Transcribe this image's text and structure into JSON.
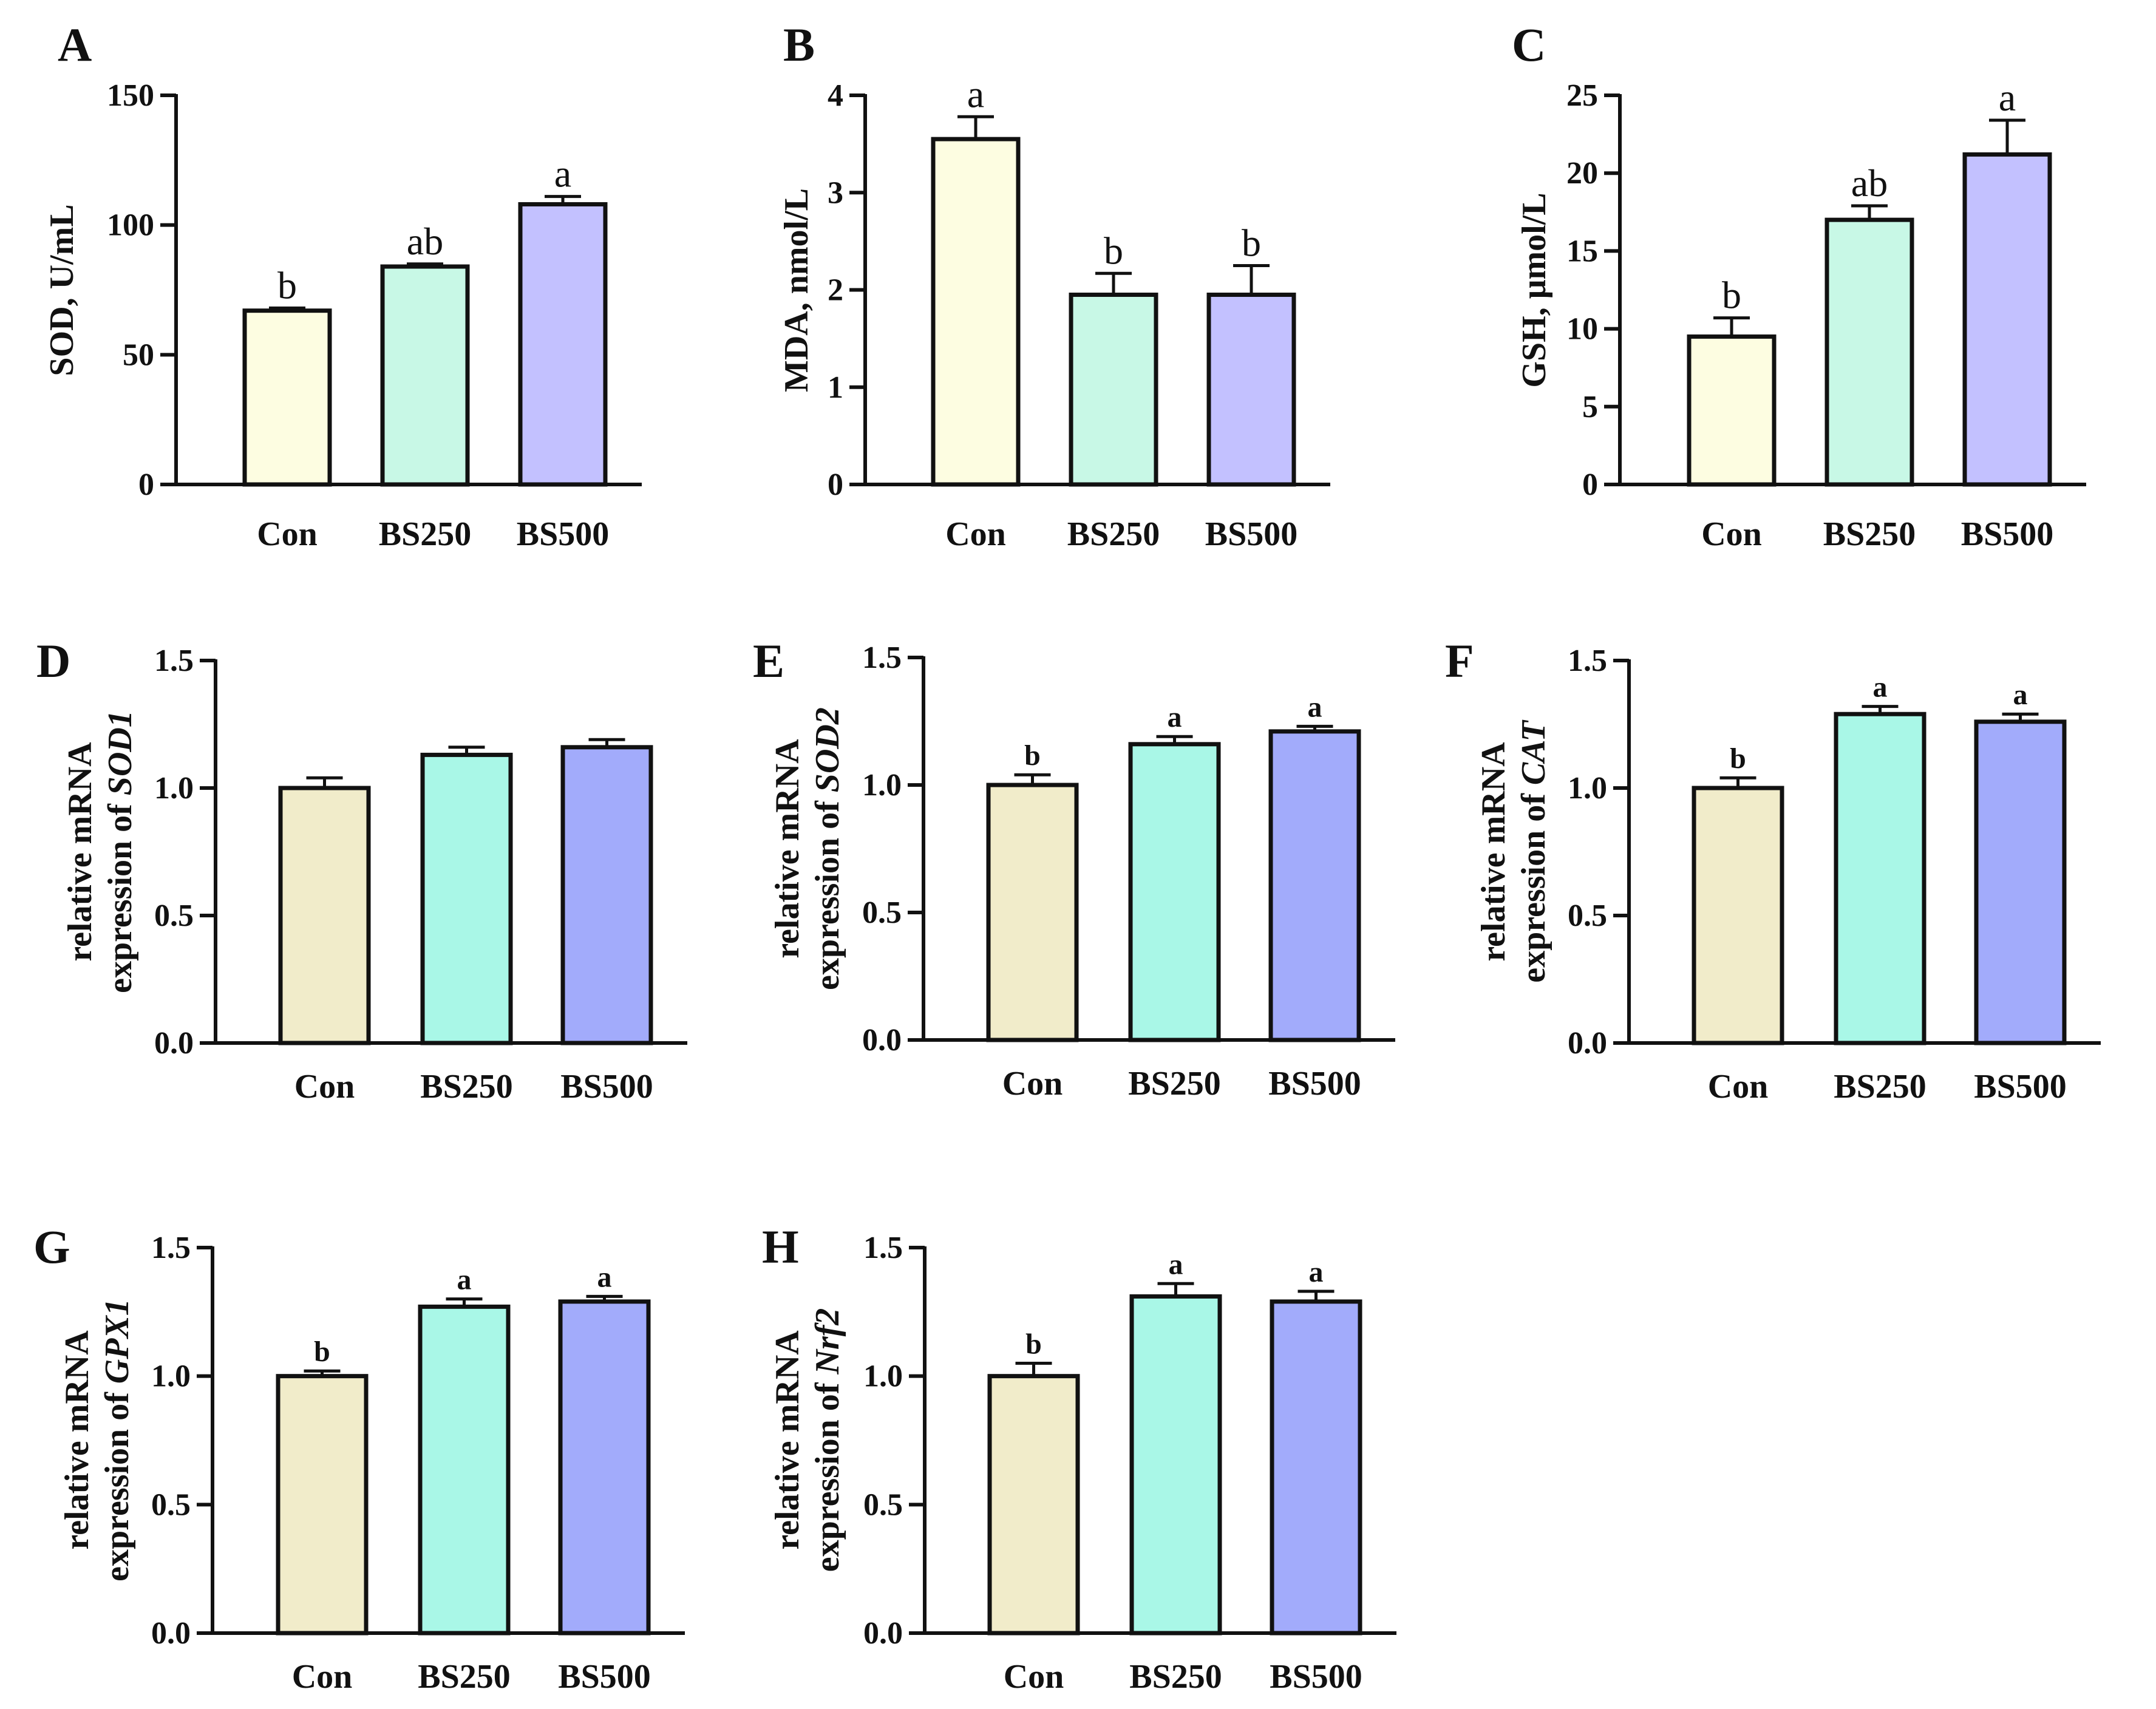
{
  "figure": {
    "colors": {
      "axis": "#111111",
      "bar_stroke": "#111111",
      "top_row": [
        "#fdfde1",
        "#c8f8e6",
        "#c3c1ff"
      ],
      "lower_rows": [
        "#f1ecca",
        "#a9f7e7",
        "#a2abfb"
      ]
    }
  },
  "chart_data": [
    {
      "panel": "A",
      "type": "bar",
      "categories": [
        "Con",
        "BS250",
        "BS500"
      ],
      "values": [
        67,
        84,
        108
      ],
      "errors": [
        1,
        1,
        3
      ],
      "significance": [
        "b",
        "ab",
        "a"
      ],
      "ylabel": [
        "SOD, U/mL"
      ],
      "ylim": [
        0,
        150
      ],
      "yticks": [
        0,
        50,
        100,
        150
      ],
      "ytick_labels": [
        "0",
        "50",
        "100",
        "150"
      ],
      "grid": false,
      "legend": "none"
    },
    {
      "panel": "B",
      "type": "bar",
      "categories": [
        "Con",
        "BS250",
        "BS500"
      ],
      "values": [
        3.55,
        1.95,
        1.95
      ],
      "errors": [
        0.23,
        0.22,
        0.3
      ],
      "significance": [
        "a",
        "b",
        "b"
      ],
      "ylabel": [
        "MDA, nmol/L"
      ],
      "ylim": [
        0,
        4
      ],
      "yticks": [
        0,
        1,
        2,
        3,
        4
      ],
      "ytick_labels": [
        "0",
        "1",
        "2",
        "3",
        "4"
      ],
      "grid": false,
      "legend": "none"
    },
    {
      "panel": "C",
      "type": "bar",
      "categories": [
        "Con",
        "BS250",
        "BS500"
      ],
      "values": [
        9.5,
        17.0,
        21.2
      ],
      "errors": [
        1.2,
        0.9,
        2.2
      ],
      "significance": [
        "b",
        "ab",
        "a"
      ],
      "ylabel": [
        "GSH, μmol/L"
      ],
      "ylim": [
        0,
        25
      ],
      "yticks": [
        0,
        5,
        10,
        15,
        20,
        25
      ],
      "ytick_labels": [
        "0",
        "5",
        "10",
        "15",
        "20",
        "25"
      ],
      "grid": false,
      "legend": "none"
    },
    {
      "panel": "D",
      "type": "bar",
      "categories": [
        "Con",
        "BS250",
        "BS500"
      ],
      "values": [
        1.0,
        1.13,
        1.16
      ],
      "errors": [
        0.04,
        0.03,
        0.03
      ],
      "significance": [
        "",
        "",
        ""
      ],
      "ylabel": [
        "relative mRNA",
        "expression of ",
        "SOD1"
      ],
      "ylim": [
        0,
        1.5
      ],
      "yticks": [
        0,
        0.5,
        1.0,
        1.5
      ],
      "ytick_labels": [
        "0.0",
        "0.5",
        "1.0",
        "1.5"
      ],
      "grid": false,
      "legend": "none"
    },
    {
      "panel": "E",
      "type": "bar",
      "categories": [
        "Con",
        "BS250",
        "BS500"
      ],
      "values": [
        1.0,
        1.16,
        1.21
      ],
      "errors": [
        0.04,
        0.03,
        0.02
      ],
      "significance": [
        "b",
        "a",
        "a"
      ],
      "ylabel": [
        "relative mRNA",
        "expression of ",
        "SOD2"
      ],
      "ylim": [
        0,
        1.5
      ],
      "yticks": [
        0,
        0.5,
        1.0,
        1.5
      ],
      "ytick_labels": [
        "0.0",
        "0.5",
        "1.0",
        "1.5"
      ],
      "grid": false,
      "legend": "none"
    },
    {
      "panel": "F",
      "type": "bar",
      "categories": [
        "Con",
        "BS250",
        "BS500"
      ],
      "values": [
        1.0,
        1.29,
        1.26
      ],
      "errors": [
        0.04,
        0.03,
        0.03
      ],
      "significance": [
        "b",
        "a",
        "a"
      ],
      "ylabel": [
        "relative mRNA",
        "expression of ",
        "CAT"
      ],
      "ylim": [
        0,
        1.5
      ],
      "yticks": [
        0,
        0.5,
        1.0,
        1.5
      ],
      "ytick_labels": [
        "0.0",
        "0.5",
        "1.0",
        "1.5"
      ],
      "grid": false,
      "legend": "none"
    },
    {
      "panel": "G",
      "type": "bar",
      "categories": [
        "Con",
        "BS250",
        "BS500"
      ],
      "values": [
        1.0,
        1.27,
        1.29
      ],
      "errors": [
        0.02,
        0.03,
        0.02
      ],
      "significance": [
        "b",
        "a",
        "a"
      ],
      "ylabel": [
        "relative mRNA",
        "expression of ",
        "GPX1"
      ],
      "ylim": [
        0,
        1.5
      ],
      "yticks": [
        0,
        0.5,
        1.0,
        1.5
      ],
      "ytick_labels": [
        "0.0",
        "0.5",
        "1.0",
        "1.5"
      ],
      "grid": false,
      "legend": "none"
    },
    {
      "panel": "H",
      "type": "bar",
      "categories": [
        "Con",
        "BS250",
        "BS500"
      ],
      "values": [
        1.0,
        1.31,
        1.29
      ],
      "errors": [
        0.05,
        0.05,
        0.04
      ],
      "significance": [
        "b",
        "a",
        "a"
      ],
      "ylabel": [
        "relative mRNA",
        "expression of ",
        "Nrf2"
      ],
      "ylim": [
        0,
        1.5
      ],
      "yticks": [
        0,
        0.5,
        1.0,
        1.5
      ],
      "ytick_labels": [
        "0.0",
        "0.5",
        "1.0",
        "1.5"
      ],
      "grid": false,
      "legend": "none"
    }
  ]
}
